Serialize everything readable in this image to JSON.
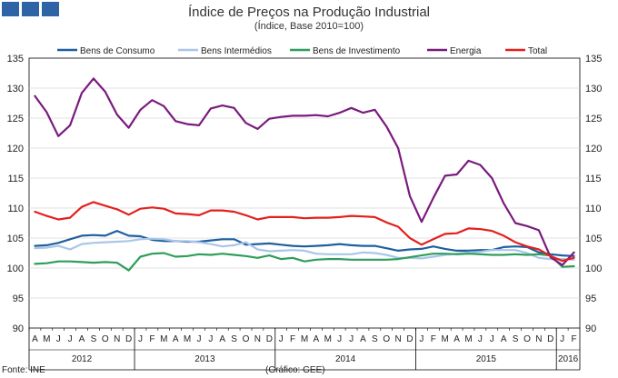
{
  "title": "Índice de Preços na Produção Industrial",
  "subtitle": "(Índice, Base 2010=100)",
  "footer": {
    "source": "Fonte: INE",
    "credit": "(Gráfico: GEE)"
  },
  "chart_data": {
    "type": "line",
    "title": "Índice de Preços na Produção Industrial",
    "subtitle": "(Índice, Base 2010=100)",
    "ylim": [
      90,
      135
    ],
    "yticks": [
      90,
      95,
      100,
      105,
      110,
      115,
      120,
      125,
      130,
      135
    ],
    "grid": true,
    "legend_position": "top",
    "month_labels": [
      "A",
      "M",
      "J",
      "J",
      "A",
      "S",
      "O",
      "N",
      "D",
      "J",
      "F",
      "M",
      "A",
      "M",
      "J",
      "J",
      "A",
      "S",
      "O",
      "N",
      "D",
      "J",
      "F",
      "M",
      "A",
      "M",
      "J",
      "J",
      "A",
      "S",
      "O",
      "N",
      "D",
      "J",
      "F",
      "M",
      "A",
      "M",
      "J",
      "J",
      "A",
      "S",
      "O",
      "N",
      "D",
      "J",
      "F"
    ],
    "year_labels": [
      {
        "label": "2012",
        "start": 0,
        "end": 8
      },
      {
        "label": "2013",
        "start": 9,
        "end": 20
      },
      {
        "label": "2014",
        "start": 21,
        "end": 32
      },
      {
        "label": "2015",
        "start": 33,
        "end": 44
      },
      {
        "label": "2016",
        "start": 45,
        "end": 46
      }
    ],
    "series": [
      {
        "name": "Bens de Consumo",
        "color": "#1f5fa0",
        "values": [
          103.7,
          103.8,
          104.2,
          104.8,
          105.4,
          105.5,
          105.4,
          106.2,
          105.4,
          105.3,
          104.7,
          104.5,
          104.5,
          104.4,
          104.4,
          104.6,
          104.8,
          104.8,
          103.9,
          104.0,
          104.1,
          103.9,
          103.7,
          103.6,
          103.7,
          103.8,
          104.0,
          103.8,
          103.7,
          103.7,
          103.3,
          102.9,
          103.1,
          103.2,
          103.6,
          103.2,
          102.9,
          102.9,
          103.0,
          103.0,
          103.5,
          103.6,
          103.5,
          102.6,
          102.3,
          102.1,
          102.0
        ]
      },
      {
        "name": "Bens Intermédios",
        "color": "#a9c6e8",
        "values": [
          103.3,
          103.4,
          103.7,
          103.1,
          104.0,
          104.2,
          104.3,
          104.4,
          104.5,
          104.8,
          104.9,
          104.8,
          104.5,
          104.5,
          104.3,
          104.0,
          103.6,
          103.8,
          104.3,
          103.1,
          102.8,
          102.9,
          103.0,
          102.9,
          102.4,
          102.3,
          102.3,
          102.3,
          102.6,
          102.5,
          102.2,
          101.7,
          101.7,
          101.6,
          101.9,
          102.2,
          102.4,
          102.6,
          102.7,
          103.0,
          103.0,
          103.0,
          102.5,
          101.7,
          101.5,
          101.5,
          101.4
        ]
      },
      {
        "name": "Bens de Investimento",
        "color": "#2e9e5a",
        "values": [
          100.7,
          100.8,
          101.1,
          101.1,
          101.0,
          100.9,
          101.0,
          100.9,
          99.6,
          101.9,
          102.4,
          102.5,
          101.9,
          102.0,
          102.3,
          102.2,
          102.4,
          102.2,
          102.0,
          101.7,
          102.1,
          101.5,
          101.7,
          101.1,
          101.4,
          101.5,
          101.5,
          101.4,
          101.4,
          101.4,
          101.4,
          101.5,
          101.8,
          102.1,
          102.4,
          102.4,
          102.3,
          102.4,
          102.3,
          102.2,
          102.2,
          102.3,
          102.2,
          102.3,
          102.1,
          100.2,
          100.3
        ]
      },
      {
        "name": "Energia",
        "color": "#7a1a7e",
        "values": [
          128.7,
          126.0,
          122.0,
          123.8,
          129.2,
          131.6,
          129.4,
          125.6,
          123.4,
          126.4,
          128.0,
          127.0,
          124.5,
          124.0,
          123.8,
          126.6,
          127.1,
          126.7,
          124.2,
          123.2,
          124.9,
          125.2,
          125.4,
          125.4,
          125.5,
          125.3,
          125.9,
          126.7,
          125.9,
          126.4,
          123.6,
          120.0,
          112.0,
          107.7,
          111.7,
          115.4,
          115.6,
          117.9,
          117.2,
          115.0,
          110.8,
          107.5,
          107.0,
          106.3,
          101.8,
          100.5,
          102.6
        ]
      },
      {
        "name": "Total",
        "color": "#e3201c",
        "values": [
          109.4,
          108.7,
          108.1,
          108.4,
          110.2,
          111.0,
          110.4,
          109.8,
          108.9,
          109.9,
          110.1,
          109.9,
          109.1,
          109.0,
          108.8,
          109.6,
          109.6,
          109.4,
          108.8,
          108.1,
          108.5,
          108.5,
          108.5,
          108.3,
          108.4,
          108.4,
          108.5,
          108.7,
          108.6,
          108.5,
          107.6,
          106.9,
          105.0,
          103.9,
          104.8,
          105.7,
          105.8,
          106.6,
          106.5,
          106.2,
          105.4,
          104.3,
          103.6,
          103.1,
          102.0,
          101.2,
          101.7
        ]
      }
    ]
  }
}
